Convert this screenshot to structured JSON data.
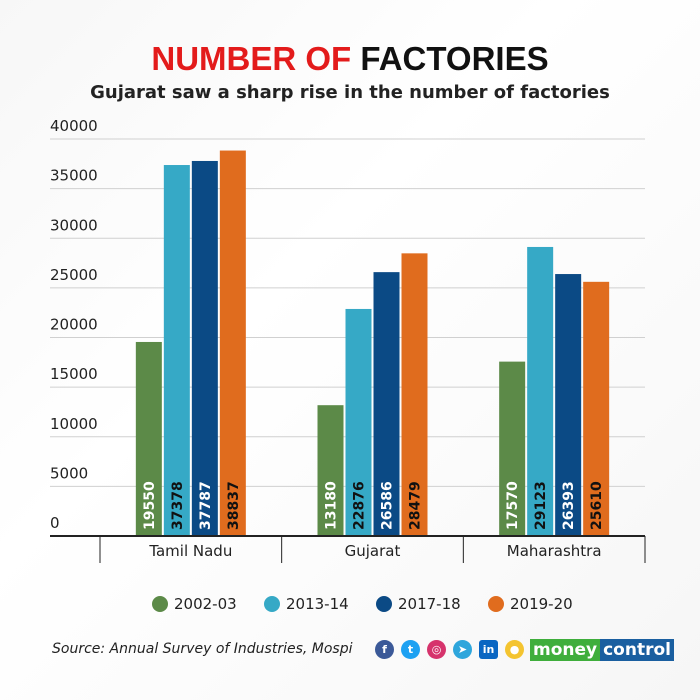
{
  "header": {
    "title_red": "NUMBER OF",
    "title_black": "FACTORIES",
    "subtitle": "Gujarat saw a sharp rise in the number of factories"
  },
  "footer": {
    "source": "Source: Annual Survey of Industries, Mospi",
    "logo_part1": "money",
    "logo_part2": "control",
    "social_icons": [
      "facebook-icon",
      "twitter-icon",
      "instagram-icon",
      "telegram-icon",
      "linkedin-icon",
      "koo-icon"
    ]
  },
  "chart_data": {
    "type": "bar",
    "title": "NUMBER OF FACTORIES",
    "subtitle": "Gujarat saw a sharp rise in the number of factories",
    "categories": [
      "Tamil Nadu",
      "Gujarat",
      "Maharashtra"
    ],
    "series": [
      {
        "name": "2002-03",
        "color": "#5c8a48",
        "label_color": "#ffffff",
        "values": [
          19550,
          13180,
          17570
        ]
      },
      {
        "name": "2013-14",
        "color": "#36a9c6",
        "label_color": "#111111",
        "values": [
          37378,
          22876,
          29123
        ]
      },
      {
        "name": "2017-18",
        "color": "#0b4a85",
        "label_color": "#ffffff",
        "values": [
          37787,
          26586,
          26393
        ]
      },
      {
        "name": "2019-20",
        "color": "#e06c1e",
        "label_color": "#111111",
        "values": [
          38837,
          28479,
          25610
        ]
      }
    ],
    "yticks": [
      0,
      5000,
      10000,
      15000,
      20000,
      25000,
      30000,
      35000,
      40000
    ],
    "ylim": [
      0,
      40000
    ],
    "grid": true,
    "legend": "bottom"
  }
}
